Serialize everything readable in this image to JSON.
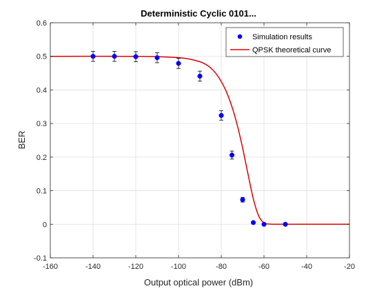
{
  "chart_data": {
    "type": "scatter",
    "title": "Deterministic Cyclic 0101...",
    "xlabel": "Output optical power (dBm)",
    "ylabel": "BER",
    "xlim": [
      -160,
      -20
    ],
    "ylim": [
      -0.1,
      0.6
    ],
    "xticks": [
      -160,
      -140,
      -120,
      -100,
      -80,
      -60,
      -40,
      -20
    ],
    "yticks": [
      -0.1,
      0,
      0.1,
      0.2,
      0.3,
      0.4,
      0.5,
      0.6
    ],
    "xtick_labels": [
      "-160",
      "-140",
      "-120",
      "-100",
      "-80",
      "-60",
      "-40",
      "-20"
    ],
    "ytick_labels": [
      "-0.1",
      "0",
      "0.1",
      "0.2",
      "0.3",
      "0.4",
      "0.5",
      "0.6"
    ],
    "grid": true,
    "legend_position": "top-right",
    "series": [
      {
        "name": "Simulation results",
        "kind": "scatter-errorbar",
        "color": "#0000ff",
        "points": [
          {
            "x": -140,
            "y": 0.5,
            "err": 0.015
          },
          {
            "x": -130,
            "y": 0.5,
            "err": 0.015
          },
          {
            "x": -120,
            "y": 0.499,
            "err": 0.015
          },
          {
            "x": -110,
            "y": 0.496,
            "err": 0.015
          },
          {
            "x": -100,
            "y": 0.479,
            "err": 0.015
          },
          {
            "x": -90,
            "y": 0.441,
            "err": 0.015
          },
          {
            "x": -80,
            "y": 0.324,
            "err": 0.014
          },
          {
            "x": -75,
            "y": 0.206,
            "err": 0.012
          },
          {
            "x": -70,
            "y": 0.073,
            "err": 0.007
          },
          {
            "x": -65,
            "y": 0.005,
            "err": 0.002
          },
          {
            "x": -60,
            "y": 0.0,
            "err": 0.001
          },
          {
            "x": -50,
            "y": 0.0,
            "err": 0.001
          }
        ]
      },
      {
        "name": "QPSK theoretical curve",
        "kind": "line",
        "color": "#dd0000",
        "x": [
          -160,
          -120,
          -110,
          -100,
          -95,
          -90,
          -87.5,
          -85,
          -82.5,
          -80,
          -77.5,
          -75,
          -72.5,
          -70,
          -67.5,
          -65,
          -62.5,
          -60,
          -57.5,
          -55,
          -50,
          -20
        ],
        "y": [
          0.5,
          0.5,
          0.499,
          0.496,
          0.492,
          0.484,
          0.477,
          0.466,
          0.449,
          0.425,
          0.393,
          0.35,
          0.295,
          0.227,
          0.15,
          0.076,
          0.025,
          0.004,
          0.0005,
          0,
          0,
          0
        ]
      }
    ]
  }
}
